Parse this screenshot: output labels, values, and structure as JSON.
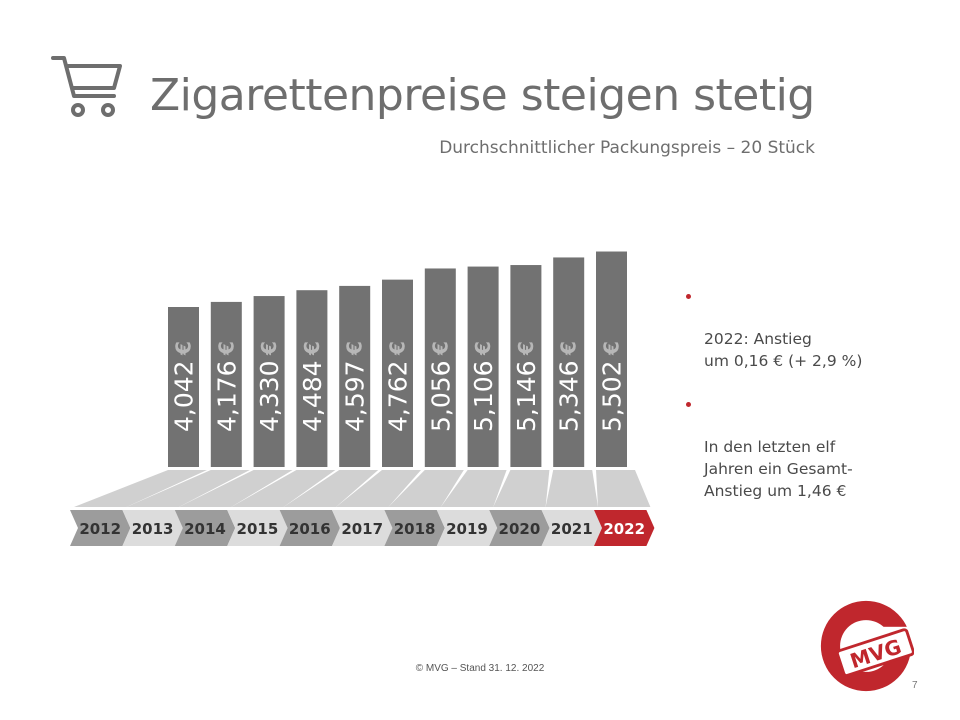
{
  "title": "Zigarettenpreise steigen stetig",
  "subtitle": "Durchschnittlicher Packungspreis – 20 Stück",
  "icons": {
    "cart": "shopping-cart-icon",
    "euro": "euro-icon"
  },
  "colors": {
    "bar": "#727272",
    "label": "#ffffff",
    "highlight": "#c0272d",
    "timeline_dark": "#9c9c9c",
    "timeline_light": "#dcdcdc",
    "text": "#6e6e6e"
  },
  "chart_data": {
    "type": "bar",
    "categories": [
      "2012",
      "2013",
      "2014",
      "2015",
      "2016",
      "2017",
      "2018",
      "2019",
      "2020",
      "2021",
      "2022"
    ],
    "values": [
      4.042,
      4.176,
      4.33,
      4.484,
      4.597,
      4.762,
      5.056,
      5.106,
      5.146,
      5.346,
      5.502
    ],
    "labels": [
      "4,042",
      "4,176",
      "4,330",
      "4,484",
      "4,597",
      "4,762",
      "5,056",
      "5,106",
      "5,146",
      "5,346",
      "5,502"
    ],
    "unit": "€",
    "highlight_category": "2022"
  },
  "bullets": [
    "2022: Anstieg\num 0,16 € (+ 2,9 %)",
    "In den letzten elf\nJahren ein Gesamt-\nAnstieg um 1,46 €"
  ],
  "footer": "© MVG – Stand 31. 12. 2022",
  "page_number": "7",
  "logo_text": "MVG"
}
